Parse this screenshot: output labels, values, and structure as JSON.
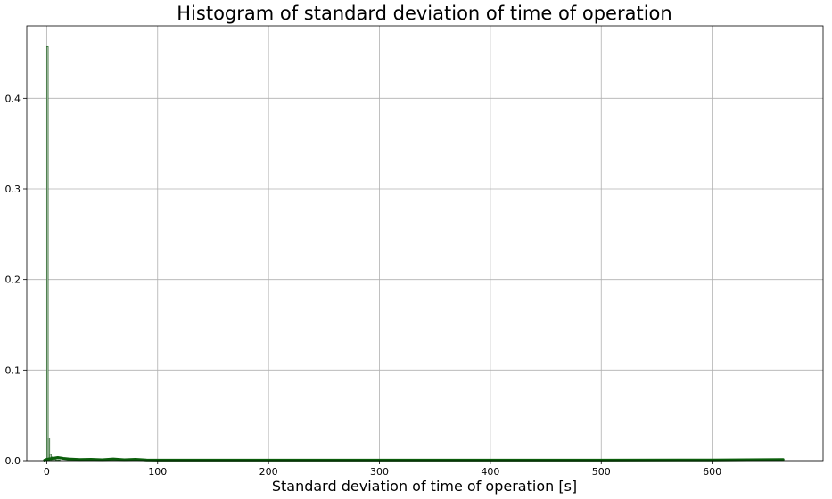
{
  "chart_data": {
    "type": "bar",
    "title": "Histogram of standard deviation of time of operation",
    "xlabel": "Standard deviation of time of operation [s]",
    "ylabel": "",
    "xlim": [
      -18,
      700
    ],
    "ylim": [
      0,
      0.48
    ],
    "xticks": [
      0,
      100,
      200,
      300,
      400,
      500,
      600
    ],
    "yticks": [
      0.0,
      0.1,
      0.2,
      0.3,
      0.4
    ],
    "xtick_labels": [
      "0",
      "100",
      "200",
      "300",
      "400",
      "500",
      "600"
    ],
    "ytick_labels": [
      "0.0",
      "0.1",
      "0.2",
      "0.3",
      "0.4"
    ],
    "grid": true,
    "bin_width": 1.33,
    "bar_color": "#cfd8cf",
    "bar_edge_color": "#2e6b2e",
    "bars": [
      {
        "x": 0.0,
        "value": 0.457
      },
      {
        "x": 1.33,
        "value": 0.025
      },
      {
        "x": 2.66,
        "value": 0.007
      },
      {
        "x": 3.99,
        "value": 0.004
      },
      {
        "x": 5.32,
        "value": 0.002
      },
      {
        "x": 6.65,
        "value": 0.0015
      },
      {
        "x": 7.98,
        "value": 0.001
      },
      {
        "x": 9.31,
        "value": 0.001
      },
      {
        "x": 10.64,
        "value": 0.0008
      }
    ],
    "kde": {
      "color": "#0b5e0b",
      "x": [
        -2,
        0,
        5,
        10,
        15,
        20,
        30,
        40,
        50,
        60,
        70,
        80,
        90,
        100,
        150,
        200,
        300,
        400,
        500,
        600,
        664
      ],
      "values": [
        0.0005,
        0.0015,
        0.0025,
        0.0035,
        0.0025,
        0.0018,
        0.0012,
        0.0015,
        0.001,
        0.0018,
        0.001,
        0.0015,
        0.0008,
        0.0006,
        0.0006,
        0.0006,
        0.0006,
        0.0006,
        0.0006,
        0.0008,
        0.0012
      ]
    }
  }
}
